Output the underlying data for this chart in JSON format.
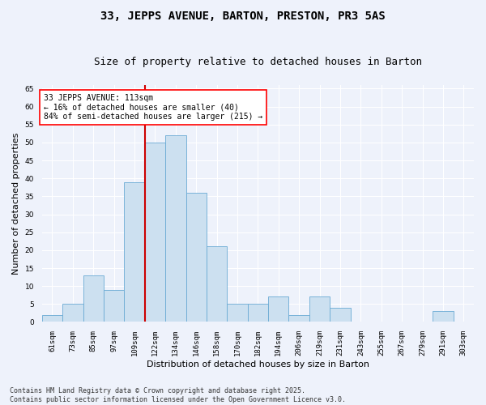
{
  "title_line1": "33, JEPPS AVENUE, BARTON, PRESTON, PR3 5AS",
  "title_line2": "Size of property relative to detached houses in Barton",
  "xlabel": "Distribution of detached houses by size in Barton",
  "ylabel": "Number of detached properties",
  "categories": [
    "61sqm",
    "73sqm",
    "85sqm",
    "97sqm",
    "109sqm",
    "122sqm",
    "134sqm",
    "146sqm",
    "158sqm",
    "170sqm",
    "182sqm",
    "194sqm",
    "206sqm",
    "219sqm",
    "231sqm",
    "243sqm",
    "255sqm",
    "267sqm",
    "279sqm",
    "291sqm",
    "303sqm"
  ],
  "values": [
    2,
    5,
    13,
    9,
    39,
    50,
    52,
    36,
    21,
    5,
    5,
    7,
    2,
    7,
    4,
    0,
    0,
    0,
    0,
    3,
    0
  ],
  "bar_color": "#cce0f0",
  "bar_edge_color": "#6aaad4",
  "red_line_x": 4.5,
  "annotation_text": "33 JEPPS AVENUE: 113sqm\n← 16% of detached houses are smaller (40)\n84% of semi-detached houses are larger (215) →",
  "annotation_box_color": "white",
  "annotation_box_edge": "red",
  "ylim": [
    0,
    66
  ],
  "yticks": [
    0,
    5,
    10,
    15,
    20,
    25,
    30,
    35,
    40,
    45,
    50,
    55,
    60,
    65
  ],
  "background_color": "#eef2fb",
  "grid_color": "white",
  "footer_line1": "Contains HM Land Registry data © Crown copyright and database right 2025.",
  "footer_line2": "Contains public sector information licensed under the Open Government Licence v3.0.",
  "red_line_color": "#cc0000",
  "title_fontsize": 10,
  "subtitle_fontsize": 9,
  "axis_label_fontsize": 8,
  "tick_fontsize": 6.5,
  "annotation_fontsize": 7,
  "footer_fontsize": 6
}
